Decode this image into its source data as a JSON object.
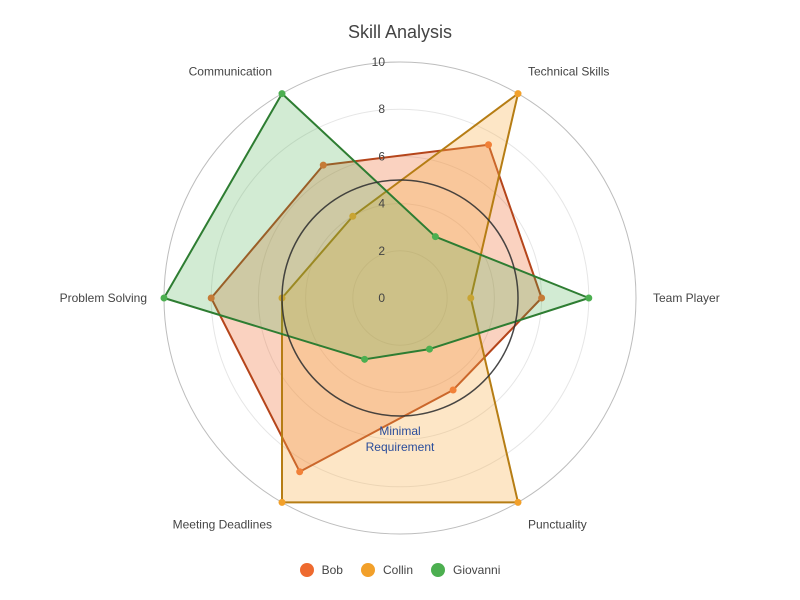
{
  "chart_data": {
    "type": "radar",
    "title": "Skill Analysis",
    "axes": [
      "Team Player",
      "Technical Skills",
      "Communication",
      "Problem Solving",
      "Meeting Deadlines",
      "Punctuality"
    ],
    "radial_range": [
      0,
      10
    ],
    "radial_ticks": [
      0,
      2,
      4,
      6,
      8,
      10
    ],
    "series": [
      {
        "name": "Bob",
        "values": [
          6,
          7.5,
          6.5,
          8,
          8.5,
          4.5
        ],
        "color": "#ee6a2f",
        "fill": "rgba(238,106,47,0.30)",
        "line": "#b5451b"
      },
      {
        "name": "Collin",
        "values": [
          3,
          10,
          4,
          5,
          10,
          10
        ],
        "color": "#f2a02a",
        "fill": "rgba(249,176,78,0.32)",
        "line": "#b67d14"
      },
      {
        "name": "Giovanni",
        "values": [
          8,
          3,
          10,
          10,
          3,
          2.5
        ],
        "color": "#4caf50",
        "fill": "rgba(76,175,80,0.25)",
        "line": "#2e7d32"
      }
    ],
    "reference": {
      "label_line1": "Minimal",
      "label_line2": "Requirement",
      "value": 5
    },
    "grid": true,
    "legend_position": "bottom-center"
  }
}
